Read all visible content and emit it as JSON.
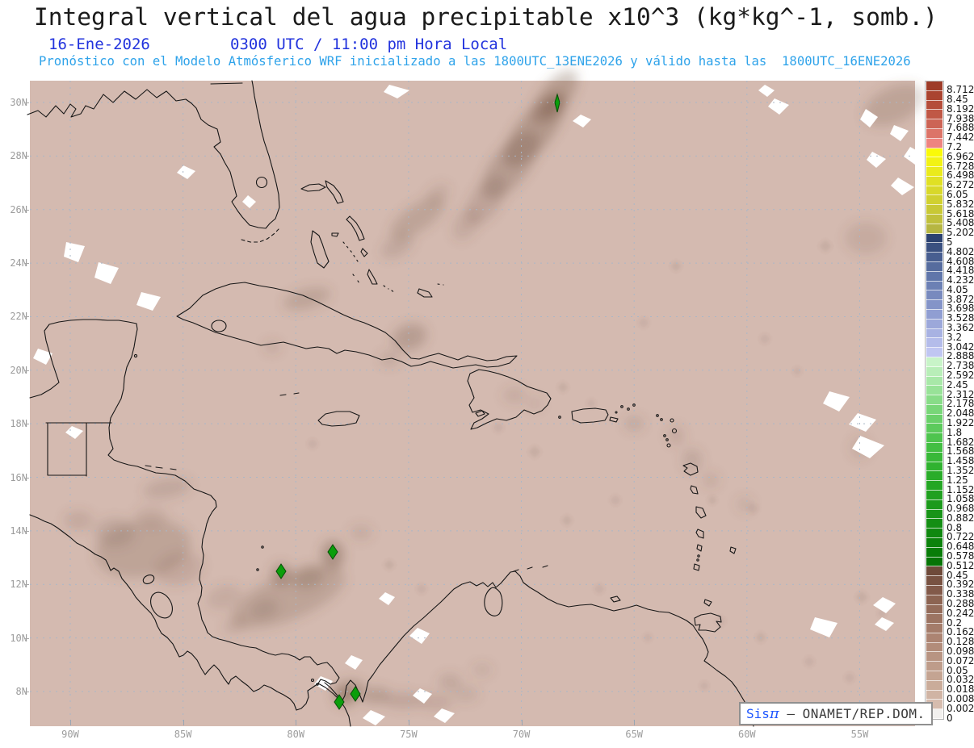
{
  "header": {
    "title": "Integral vertical del agua precipitable x10^3 (kg*kg^-1, somb.)",
    "date": "16-Ene-2026",
    "time": "0300 UTC / 11:00 pm Hora Local",
    "forecast": "Pronóstico con el Modelo Atmósferico WRF inicializado a las 1800UTC_13ENE2026 y válido hasta las  1800UTC_16ENE2026"
  },
  "map": {
    "lat_labels": [
      "30N",
      "28N",
      "26N",
      "24N",
      "22N",
      "20N",
      "18N",
      "16N",
      "14N",
      "12N",
      "10N",
      "8N"
    ],
    "lon_labels": [
      "90W",
      "85W",
      "80W",
      "75W",
      "70W",
      "65W",
      "60W",
      "55W"
    ],
    "background_color": "#d4bab0",
    "grid_color": "#a9b7c7",
    "coastline_color": "#161616",
    "marker_color": "#0b9e0b"
  },
  "colorbar": {
    "levels": [
      "8.712",
      "8.45",
      "8.192",
      "7.938",
      "7.688",
      "7.442",
      "7.2",
      "6.962",
      "6.728",
      "6.498",
      "6.272",
      "6.05",
      "5.832",
      "5.618",
      "5.408",
      "5.202",
      "5",
      "4.802",
      "4.608",
      "4.418",
      "4.232",
      "4.05",
      "3.872",
      "3.698",
      "3.528",
      "3.362",
      "3.2",
      "3.042",
      "2.888",
      "2.738",
      "2.592",
      "2.45",
      "2.312",
      "2.178",
      "2.048",
      "1.922",
      "1.8",
      "1.682",
      "1.568",
      "1.458",
      "1.352",
      "1.25",
      "1.152",
      "1.058",
      "0.968",
      "0.882",
      "0.8",
      "0.722",
      "0.648",
      "0.578",
      "0.512",
      "0.45",
      "0.392",
      "0.338",
      "0.288",
      "0.242",
      "0.2",
      "0.162",
      "0.128",
      "0.098",
      "0.072",
      "0.05",
      "0.032",
      "0.018",
      "0.008",
      "0.002",
      "0"
    ],
    "colors": [
      "#9e3c28",
      "#aa4430",
      "#b54d3a",
      "#c05846",
      "#cc6455",
      "#dc7468",
      "#ee8480",
      "#fafa08",
      "#f2f214",
      "#eaea1c",
      "#e0e024",
      "#d8d82a",
      "#d0d030",
      "#c8c836",
      "#c0c03c",
      "#b6b642",
      "#2c4270",
      "#3a5080",
      "#485e90",
      "#566c9e",
      "#6076aa",
      "#6c80b4",
      "#788abe",
      "#8494c8",
      "#909ed2",
      "#9ca8da",
      "#a8b2e2",
      "#b4bcea",
      "#c0c6f2",
      "#c8f4c8",
      "#b8eeb8",
      "#a8e8a8",
      "#98e298",
      "#88dc88",
      "#78d678",
      "#6ad06a",
      "#5cca5c",
      "#4ec44e",
      "#42be42",
      "#38b838",
      "#30b230",
      "#2aac2a",
      "#24a624",
      "#20a020",
      "#1c9a1c",
      "#189418",
      "#148e14",
      "#108810",
      "#0c820c",
      "#087c08",
      "#067406",
      "#6e4a3a",
      "#785242",
      "#825a4a",
      "#8c6452",
      "#946c5a",
      "#9c7462",
      "#a47c6a",
      "#ac8472",
      "#b28c7a",
      "#b89482",
      "#be9c8a",
      "#c4a492",
      "#caac9a",
      "#d0b4a4",
      "#d6bcae",
      "#f2f0ee"
    ]
  },
  "attribution": {
    "brand": "Sis",
    "pi": "π",
    "separator": "–",
    "org": "ONAMET/REP.DOM."
  }
}
